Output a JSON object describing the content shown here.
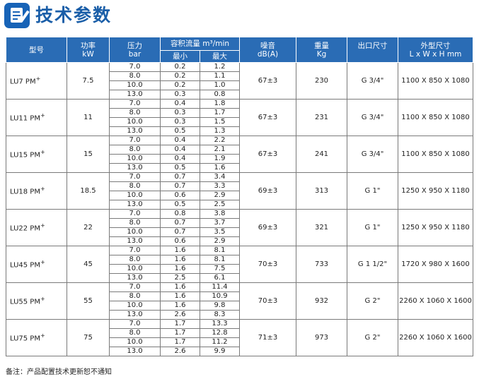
{
  "page": {
    "title": "技术参数",
    "note": "备注：产品配置技术更新恕不通知"
  },
  "headers": {
    "model": "型号",
    "power": "功率",
    "power_unit": "kW",
    "pressure": "压力",
    "pressure_unit": "bar",
    "flow": "容积流量  m³/min",
    "flow_min": "最小",
    "flow_max": "最大",
    "noise": "噪音",
    "noise_unit": "dB(A)",
    "weight": "重量",
    "weight_unit": "Kg",
    "outlet": "出口尺寸",
    "dims": "外型尺寸",
    "dims_unit": "L x W x H mm"
  },
  "models": [
    {
      "name": "LU7 PM",
      "sup": "+",
      "power": "7.5",
      "noise": "67±3",
      "weight": "230",
      "outlet": "G 3/4\"",
      "dims": "1100 X 850 X 1080",
      "rows": [
        [
          "7.0",
          "0.2",
          "1.2"
        ],
        [
          "8.0",
          "0.2",
          "1.1"
        ],
        [
          "10.0",
          "0.2",
          "1.0"
        ],
        [
          "13.0",
          "0.3",
          "0.8"
        ]
      ]
    },
    {
      "name": "LU11 PM",
      "sup": "+",
      "power": "11",
      "noise": "67±3",
      "weight": "231",
      "outlet": "G 3/4\"",
      "dims": "1100 X 850 X 1080",
      "rows": [
        [
          "7.0",
          "0.4",
          "1.8"
        ],
        [
          "8.0",
          "0.3",
          "1.7"
        ],
        [
          "10.0",
          "0.3",
          "1.5"
        ],
        [
          "13.0",
          "0.5",
          "1.3"
        ]
      ]
    },
    {
      "name": "LU15 PM",
      "sup": "+",
      "power": "15",
      "noise": "67±3",
      "weight": "241",
      "outlet": "G 3/4\"",
      "dims": "1100 X 850 X 1080",
      "rows": [
        [
          "7.0",
          "0.4",
          "2.2"
        ],
        [
          "8.0",
          "0.4",
          "2.1"
        ],
        [
          "10.0",
          "0.4",
          "1.9"
        ],
        [
          "13.0",
          "0.5",
          "1.6"
        ]
      ]
    },
    {
      "name": "LU18 PM",
      "sup": "+",
      "power": "18.5",
      "noise": "69±3",
      "weight": "313",
      "outlet": "G 1\"",
      "dims": "1250 X 950 X 1180",
      "rows": [
        [
          "7.0",
          "0.7",
          "3.4"
        ],
        [
          "8.0",
          "0.7",
          "3.3"
        ],
        [
          "10.0",
          "0.6",
          "2.9"
        ],
        [
          "13.0",
          "0.5",
          "2.5"
        ]
      ]
    },
    {
      "name": "LU22 PM",
      "sup": "+",
      "power": "22",
      "noise": "69±3",
      "weight": "321",
      "outlet": "G 1\"",
      "dims": "1250 X 950 X 1180",
      "rows": [
        [
          "7.0",
          "0.8",
          "3.8"
        ],
        [
          "8.0",
          "0.7",
          "3.7"
        ],
        [
          "10.0",
          "0.7",
          "3.5"
        ],
        [
          "13.0",
          "0.6",
          "2.9"
        ]
      ]
    },
    {
      "name": "LU45 PM",
      "sup": "+",
      "power": "45",
      "noise": "70±3",
      "weight": "733",
      "outlet": "G 1 1/2\"",
      "dims": "1720 X 980 X 1600",
      "rows": [
        [
          "7.0",
          "1.6",
          "8.1"
        ],
        [
          "8.0",
          "1.6",
          "8.1"
        ],
        [
          "10.0",
          "1.6",
          "7.5"
        ],
        [
          "13.0",
          "2.5",
          "6.1"
        ]
      ]
    },
    {
      "name": "LU55 PM",
      "sup": "+",
      "power": "55",
      "noise": "70±3",
      "weight": "932",
      "outlet": "G 2\"",
      "dims": "2260 X 1060 X 1600",
      "rows": [
        [
          "7.0",
          "1.6",
          "11.4"
        ],
        [
          "8.0",
          "1.6",
          "10.9"
        ],
        [
          "10.0",
          "1.6",
          "9.8"
        ],
        [
          "13.0",
          "2.6",
          "8.3"
        ]
      ]
    },
    {
      "name": "LU75 PM",
      "sup": "+",
      "power": "75",
      "noise": "71±3",
      "weight": "973",
      "outlet": "G 2\"",
      "dims": "2260 X 1060 X 1600",
      "rows": [
        [
          "7.0",
          "1.7",
          "13.3"
        ],
        [
          "8.0",
          "1.7",
          "12.8"
        ],
        [
          "10.0",
          "1.7",
          "11.2"
        ],
        [
          "13.0",
          "2.6",
          "9.9"
        ]
      ]
    }
  ]
}
